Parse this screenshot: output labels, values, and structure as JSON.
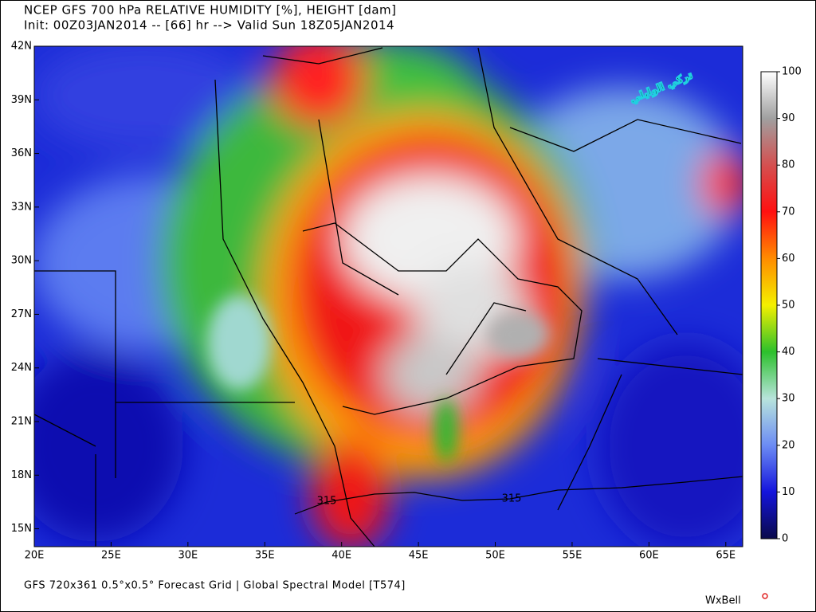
{
  "header": {
    "title": "NCEP GFS 700 hPa RELATIVE HUMIDITY [%], HEIGHT [dam]",
    "subtitle": "Init: 00Z03JAN2014 -- [66] hr --> Valid Sun 18Z05JAN2014"
  },
  "map": {
    "type": "map",
    "xlim": [
      20,
      66.1
    ],
    "ylim": [
      14,
      42
    ],
    "xticks": [
      {
        "value": 20,
        "label": "20E"
      },
      {
        "value": 25,
        "label": "25E"
      },
      {
        "value": 30,
        "label": "30E"
      },
      {
        "value": 35,
        "label": "35E"
      },
      {
        "value": 40,
        "label": "40E"
      },
      {
        "value": 45,
        "label": "45E"
      },
      {
        "value": 50,
        "label": "50E"
      },
      {
        "value": 55,
        "label": "55E"
      },
      {
        "value": 60,
        "label": "60E"
      },
      {
        "value": 65,
        "label": "65E"
      }
    ],
    "yticks": [
      {
        "value": 15,
        "label": "15N"
      },
      {
        "value": 18,
        "label": "18N"
      },
      {
        "value": 21,
        "label": "21N"
      },
      {
        "value": 24,
        "label": "24N"
      },
      {
        "value": 27,
        "label": "27N"
      },
      {
        "value": 30,
        "label": "30N"
      },
      {
        "value": 33,
        "label": "33N"
      },
      {
        "value": 36,
        "label": "36N"
      },
      {
        "value": 39,
        "label": "39N"
      },
      {
        "value": 42,
        "label": "42N"
      }
    ],
    "contour_labels": [
      "315",
      "315"
    ]
  },
  "colorbar": {
    "lim": [
      0,
      100
    ],
    "ticks": [
      0,
      10,
      20,
      30,
      40,
      50,
      60,
      70,
      80,
      90,
      100
    ],
    "colors": [
      "#0a0a4a",
      "#1414dc",
      "#6c8cf4",
      "#b8e4dc",
      "#2cc02c",
      "#f4f000",
      "#ff8c00",
      "#ff1010",
      "#d45050",
      "#a0a0a0",
      "#ffffff"
    ]
  },
  "watermark": "تركي الوايلي",
  "footer": "GFS 720x361 0.5°x0.5° Forecast Grid | Global Spectral Model [T574]",
  "logo": "WxBell"
}
